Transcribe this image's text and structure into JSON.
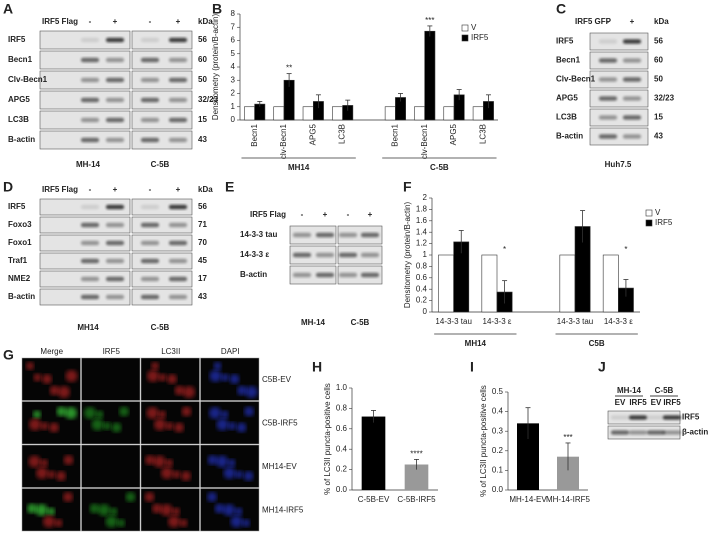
{
  "chart_data": [
    {
      "type": "bar",
      "panel": "B",
      "y_label": "Densitometry (protein/B-actin)",
      "categories": [
        "Becn1",
        "clv-Becn1",
        "APG5",
        "LC3B",
        "Becn1",
        "clv-Becn1",
        "APG5",
        "LC3B"
      ],
      "groups": [
        "MH14",
        "C-5B"
      ],
      "series": [
        {
          "name": "V",
          "color": "#ffffff",
          "values": [
            1,
            1,
            1,
            1,
            1,
            1,
            1,
            1
          ]
        },
        {
          "name": "IRF5",
          "color": "#000000",
          "values": [
            1.2,
            3.0,
            1.4,
            1.1,
            1.7,
            6.7,
            1.9,
            1.4
          ],
          "errors": [
            0.2,
            0.5,
            0.5,
            0.4,
            0.3,
            0.4,
            0.4,
            0.5
          ]
        }
      ],
      "significance": [
        null,
        "**",
        null,
        null,
        null,
        "***",
        null,
        null
      ],
      "ylim": [
        0,
        8
      ],
      "yticks": [
        0,
        1,
        2,
        3,
        4,
        5,
        6,
        7,
        8
      ]
    },
    {
      "type": "bar",
      "panel": "F",
      "y_label": "Densitometry (protein/B-actin)",
      "categories": [
        "14-3-3 tau",
        "14-3-3 ε",
        "14-3-3 tau",
        "14-3-3 ε"
      ],
      "groups": [
        "MH14",
        "C5B"
      ],
      "series": [
        {
          "name": "V",
          "color": "#ffffff",
          "values": [
            1,
            1,
            1,
            1
          ]
        },
        {
          "name": "IRF5",
          "color": "#000000",
          "values": [
            1.23,
            0.35,
            1.5,
            0.42
          ],
          "errors": [
            0.2,
            0.2,
            0.28,
            0.15
          ]
        }
      ],
      "significance": [
        null,
        "*",
        null,
        "*"
      ],
      "ylim": [
        0,
        2
      ],
      "yticks": [
        0,
        0.2,
        0.4,
        0.6,
        0.8,
        1,
        1.2,
        1.4,
        1.6,
        1.8,
        2
      ]
    },
    {
      "type": "bar",
      "panel": "H",
      "y_label": "% of LC3II puncta-positive cells",
      "categories": [
        "C-5B-EV",
        "C-5B-IRF5"
      ],
      "values": [
        0.72,
        0.25
      ],
      "errors": [
        0.06,
        0.05
      ],
      "colors": [
        "#000000",
        "#999999"
      ],
      "significance": [
        null,
        "****"
      ],
      "ylim": [
        0,
        1
      ],
      "yticks": [
        {
          "value": 0,
          "label": "0.0"
        },
        0.2,
        0.4,
        0.6,
        0.8,
        {
          "value": 1,
          "label": "1.0"
        }
      ]
    },
    {
      "type": "bar",
      "panel": "I",
      "y_label": "% of LC3II puncta-positive cells",
      "categories": [
        "MH-14-EV",
        "MH-14-IRF5"
      ],
      "values": [
        0.34,
        0.17
      ],
      "errors": [
        0.08,
        0.07
      ],
      "colors": [
        "#000000",
        "#999999"
      ],
      "significance": [
        null,
        "***"
      ],
      "ylim": [
        0,
        0.5
      ],
      "yticks": [
        {
          "value": 0,
          "label": "0.0"
        },
        0.1,
        0.2,
        0.3,
        0.4,
        0.5
      ]
    }
  ],
  "blots": [
    {
      "panel": "A",
      "treatment": "IRF5 Flag",
      "lanes": [
        "-",
        "+",
        "-",
        "+"
      ],
      "kda_label": "kDa",
      "rows": [
        {
          "label": "IRF5",
          "kda": "56"
        },
        {
          "label": "Becn1",
          "kda": "60"
        },
        {
          "label": "Clv-Becn1",
          "kda": "50"
        },
        {
          "label": "APG5",
          "kda": "32/23"
        },
        {
          "label": "LC3B",
          "kda": "15"
        },
        {
          "label": "B-actin",
          "kda": "43"
        }
      ],
      "cell_lines": [
        "MH-14",
        "C-5B"
      ]
    },
    {
      "panel": "C",
      "treatment": "IRF5 GFP",
      "lanes": [
        "-",
        "+"
      ],
      "kda_label": "kDa",
      "rows": [
        {
          "label": "IRF5",
          "kda": "56"
        },
        {
          "label": "Becn1",
          "kda": "60"
        },
        {
          "label": "Clv-Becn1",
          "kda": "50"
        },
        {
          "label": "APG5",
          "kda": "32/23"
        },
        {
          "label": "LC3B",
          "kda": "15"
        },
        {
          "label": "B-actin",
          "kda": "43"
        }
      ],
      "cell_lines": [
        "Huh7.5"
      ]
    },
    {
      "panel": "D",
      "treatment": "IRF5 Flag",
      "lanes": [
        "-",
        "+",
        "-",
        "+"
      ],
      "kda_label": "kDa",
      "rows": [
        {
          "label": "IRF5",
          "kda": "56"
        },
        {
          "label": "Foxo3",
          "kda": "71"
        },
        {
          "label": "Foxo1",
          "kda": "70"
        },
        {
          "label": "Traf1",
          "kda": "45"
        },
        {
          "label": "NME2",
          "kda": "17"
        },
        {
          "label": "B-actin",
          "kda": "43"
        }
      ],
      "cell_lines": [
        "MH14",
        "C-5B"
      ]
    },
    {
      "panel": "E",
      "treatment": "IRF5 Flag",
      "lanes": [
        "-",
        "+",
        "-",
        "+"
      ],
      "rows": [
        {
          "label": "14-3-3 tau"
        },
        {
          "label": "14-3-3 ε"
        },
        {
          "label": "B-actin"
        }
      ],
      "cell_lines": [
        "MH-14",
        "C-5B"
      ]
    },
    {
      "panel": "J",
      "lanes": [
        "EV",
        "IRF5",
        "EV",
        "IRF5"
      ],
      "rows": [
        {
          "label": "IRF5"
        },
        {
          "label": "β-actin"
        }
      ],
      "cell_lines": [
        "MH-14",
        "C-5B"
      ]
    }
  ],
  "microscopy": {
    "panel": "G",
    "columns": [
      "Merge",
      "IRF5",
      "LC3II",
      "DAPI"
    ],
    "rows": [
      "C5B-EV",
      "C5B-IRF5",
      "MH14-EV",
      "MH14-IRF5"
    ]
  }
}
